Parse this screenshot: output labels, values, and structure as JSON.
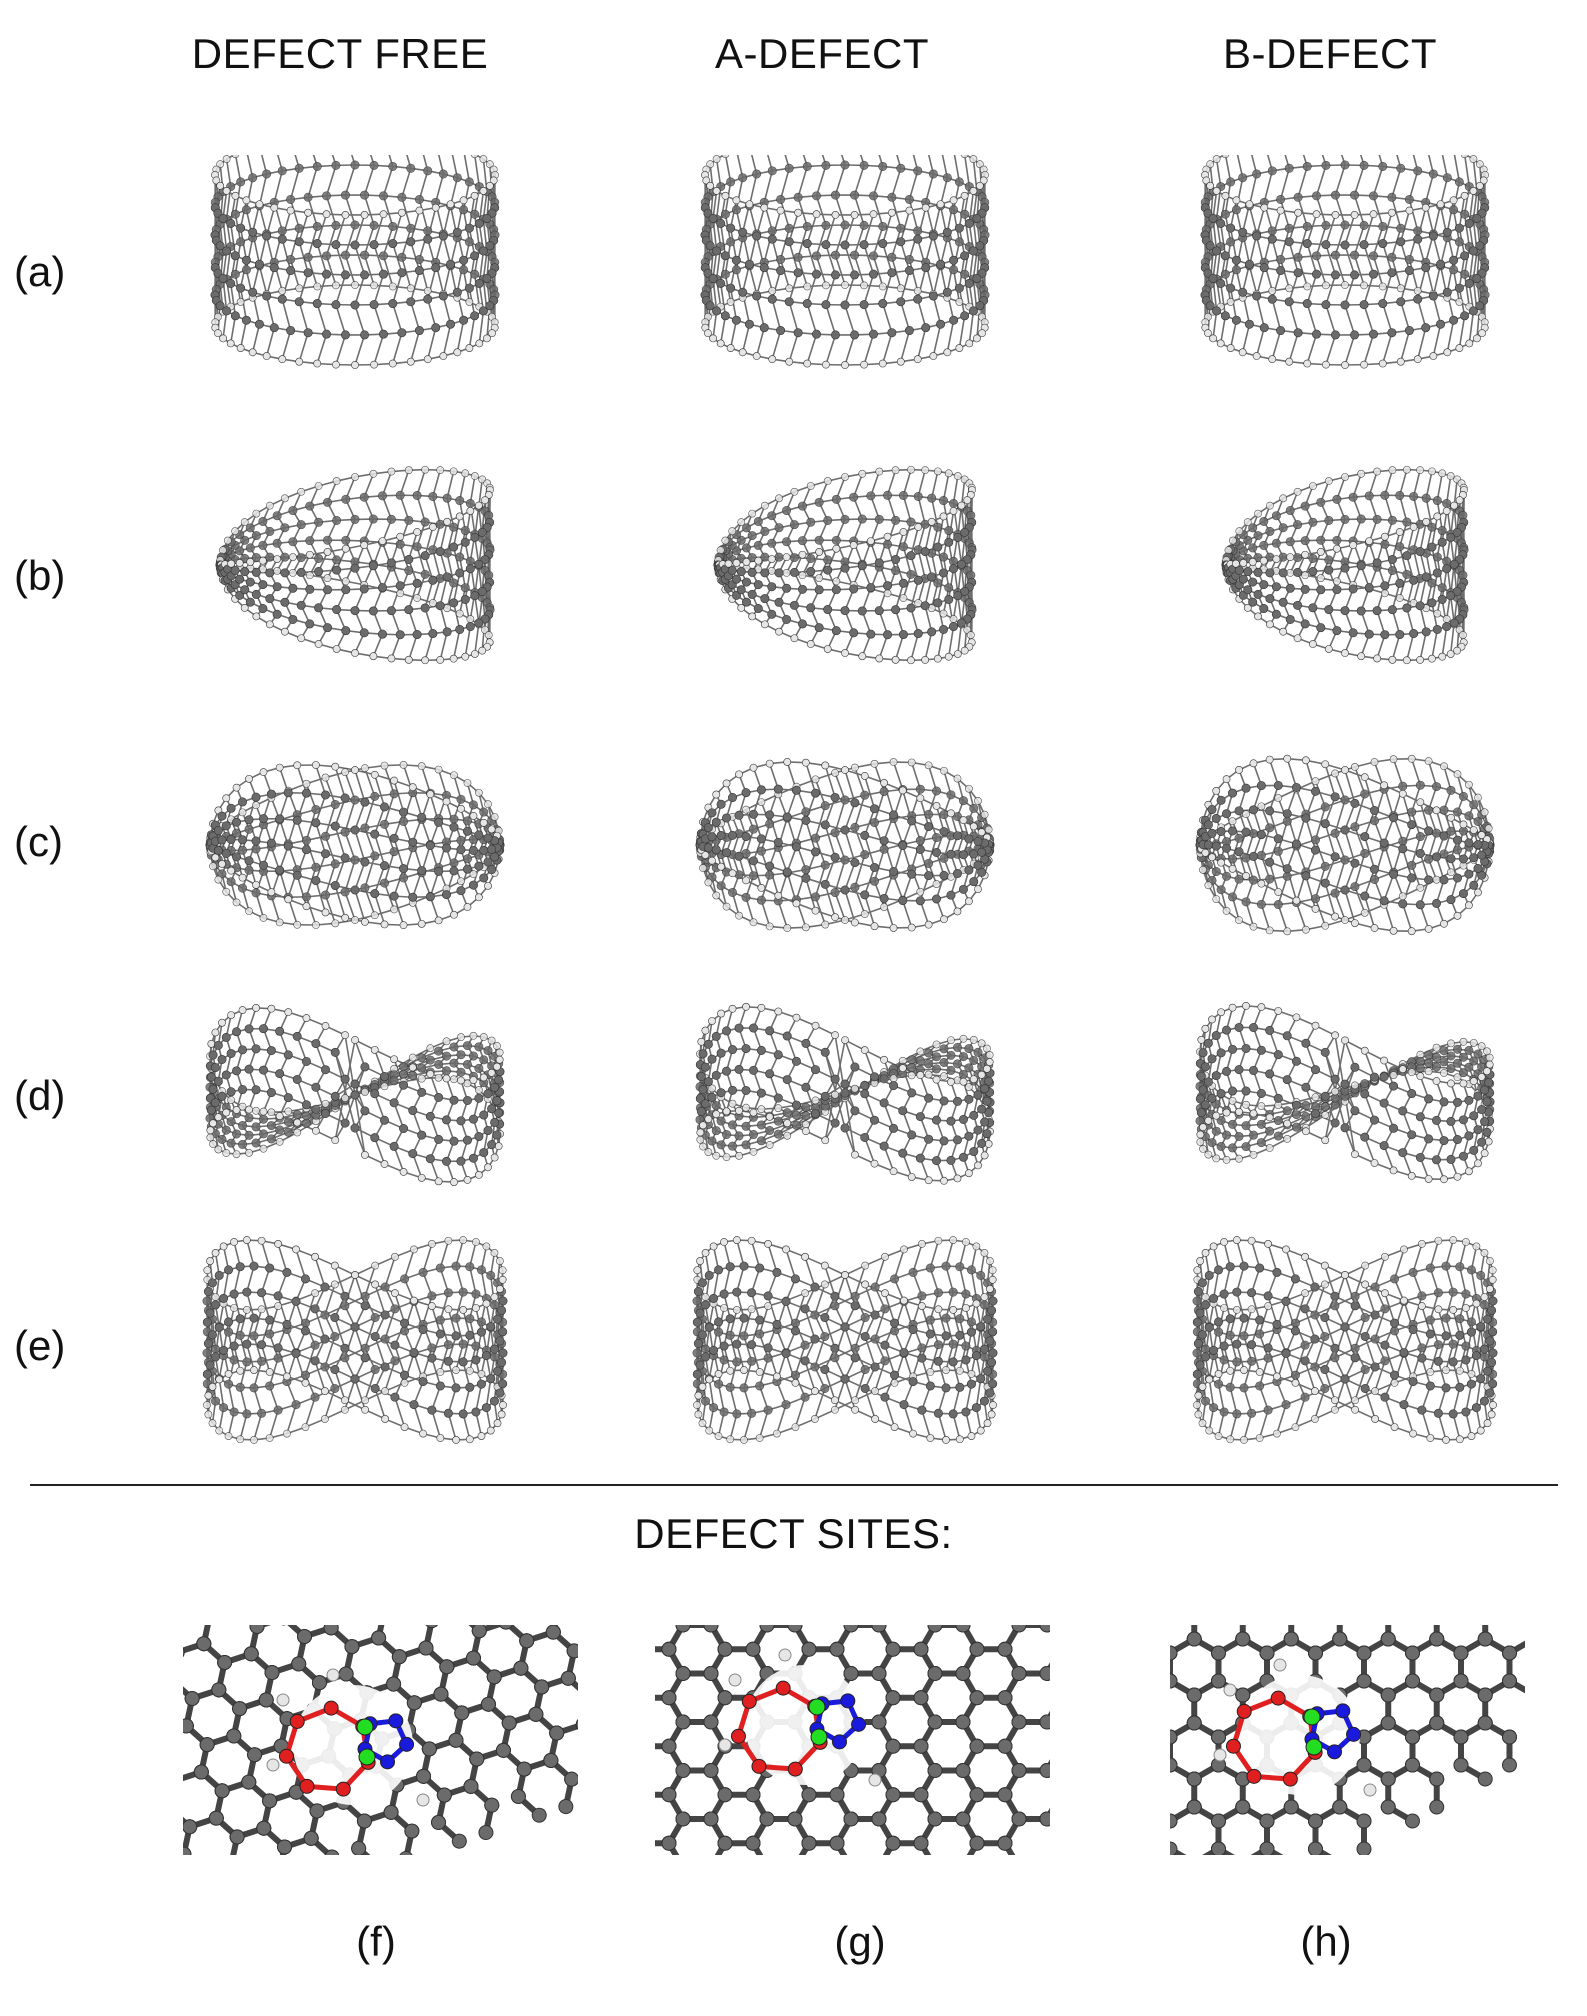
{
  "columns": [
    "DEFECT FREE",
    "A-DEFECT",
    "B-DEFECT"
  ],
  "rows": [
    "(a)",
    "(b)",
    "(c)",
    "(d)",
    "(e)"
  ],
  "row_shapes": [
    "ring",
    "mobius",
    "twist",
    "figure8",
    "figure8flat"
  ],
  "defect_title": "DEFECT SITES:",
  "sites": [
    "(f)",
    "(g)",
    "(h)"
  ],
  "colors": {
    "carbon": "#6b6b6b",
    "hydrogen": "#e6e6e6",
    "bond": "#555555",
    "pentagon": "#e02020",
    "heptagon_link": "#22dd22",
    "nitrogen": "#1a1adc"
  }
}
